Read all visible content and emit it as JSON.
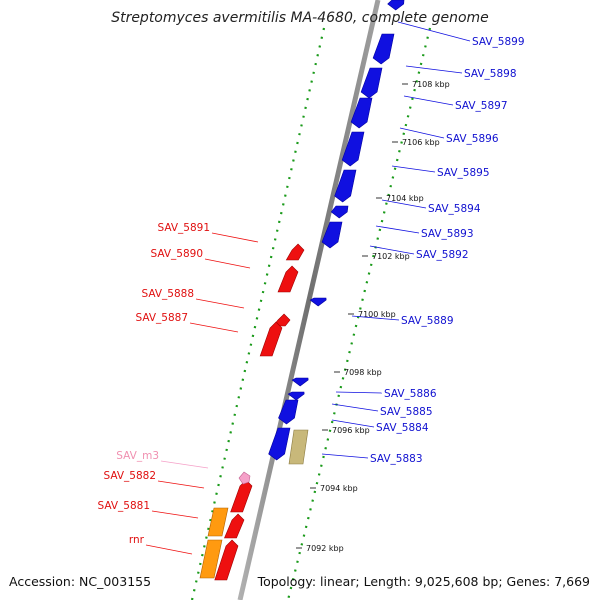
{
  "title": "Streptomyces avermitilis MA-4680, complete genome",
  "footer": {
    "accession": "Accession: NC_003155",
    "summary": "Topology: linear; Length: 9,025,608 bp; Genes: 7,669"
  },
  "ticks": [
    "7108 kbp",
    "7106 kbp",
    "7104 kbp",
    "7102 kbp",
    "7100 kbp",
    "7098 kbp",
    "7096 kbp",
    "7094 kbp",
    "7092 kbp"
  ],
  "forward_genes": [
    "SAV_5899",
    "SAV_5898",
    "SAV_5897",
    "SAV_5896",
    "SAV_5895",
    "SAV_5894",
    "SAV_5893",
    "SAV_5892",
    "SAV_5889",
    "SAV_5886",
    "SAV_5885",
    "SAV_5884",
    "SAV_5883"
  ],
  "reverse_genes": [
    "SAV_5891",
    "SAV_5890",
    "SAV_5888",
    "SAV_5887",
    "SAV_m3",
    "SAV_5882",
    "SAV_5881",
    "rnr"
  ],
  "colors": {
    "forward": "#1010e0",
    "reverse": "#ee1010",
    "rna": "#f5a0c8",
    "rrna": "#ff9a10",
    "other": "#c8b87a",
    "axis": "#8a8a8a",
    "dots": "#1a9a1a"
  }
}
